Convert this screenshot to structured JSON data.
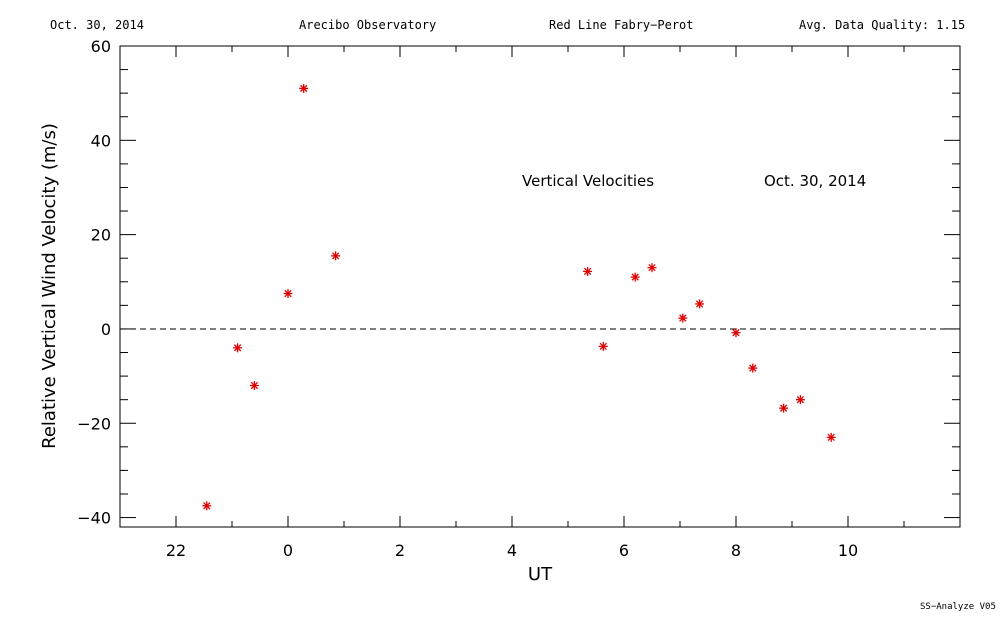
{
  "header": {
    "date": "Oct. 30, 2014",
    "observatory": "Arecibo Observatory",
    "instrument": "Red Line Fabry−Perot",
    "quality": "Avg. Data Quality: 1.15"
  },
  "footer": {
    "version": "SS−Analyze V05"
  },
  "chart_data": {
    "type": "scatter",
    "title": "Vertical Velocities",
    "annotation_date": "Oct. 30, 2014",
    "xlabel": "UT",
    "ylabel": "Relative Vertical Wind Velocity (m/s)",
    "xlim": [
      21,
      36
    ],
    "ylim": [
      -42,
      60
    ],
    "x_ticks": [
      {
        "value": 22,
        "label": "22"
      },
      {
        "value": 24,
        "label": "0"
      },
      {
        "value": 26,
        "label": "2"
      },
      {
        "value": 28,
        "label": "4"
      },
      {
        "value": 30,
        "label": "6"
      },
      {
        "value": 32,
        "label": "8"
      },
      {
        "value": 34,
        "label": "10"
      }
    ],
    "y_ticks": [
      {
        "value": -40,
        "label": "−40"
      },
      {
        "value": -20,
        "label": "−20"
      },
      {
        "value": 0,
        "label": "0"
      },
      {
        "value": 20,
        "label": "20"
      },
      {
        "value": 40,
        "label": "40"
      },
      {
        "value": 60,
        "label": "60"
      }
    ],
    "reference_line": {
      "y": 0,
      "style": "dashed"
    },
    "marker": {
      "symbol": "*",
      "color": "#dd0000"
    },
    "points": [
      {
        "x": 22.55,
        "y": -37.5
      },
      {
        "x": 23.1,
        "y": -4
      },
      {
        "x": 23.4,
        "y": -12
      },
      {
        "x": 24.0,
        "y": 7.5
      },
      {
        "x": 24.28,
        "y": 51
      },
      {
        "x": 24.85,
        "y": 15.5
      },
      {
        "x": 29.35,
        "y": 12.2
      },
      {
        "x": 29.63,
        "y": -3.7
      },
      {
        "x": 30.2,
        "y": 11
      },
      {
        "x": 30.5,
        "y": 13
      },
      {
        "x": 31.05,
        "y": 2.3
      },
      {
        "x": 31.35,
        "y": 5.3
      },
      {
        "x": 32.0,
        "y": -0.8
      },
      {
        "x": 32.3,
        "y": -8.3
      },
      {
        "x": 32.85,
        "y": -16.8
      },
      {
        "x": 33.15,
        "y": -15
      },
      {
        "x": 33.7,
        "y": -23
      }
    ]
  }
}
